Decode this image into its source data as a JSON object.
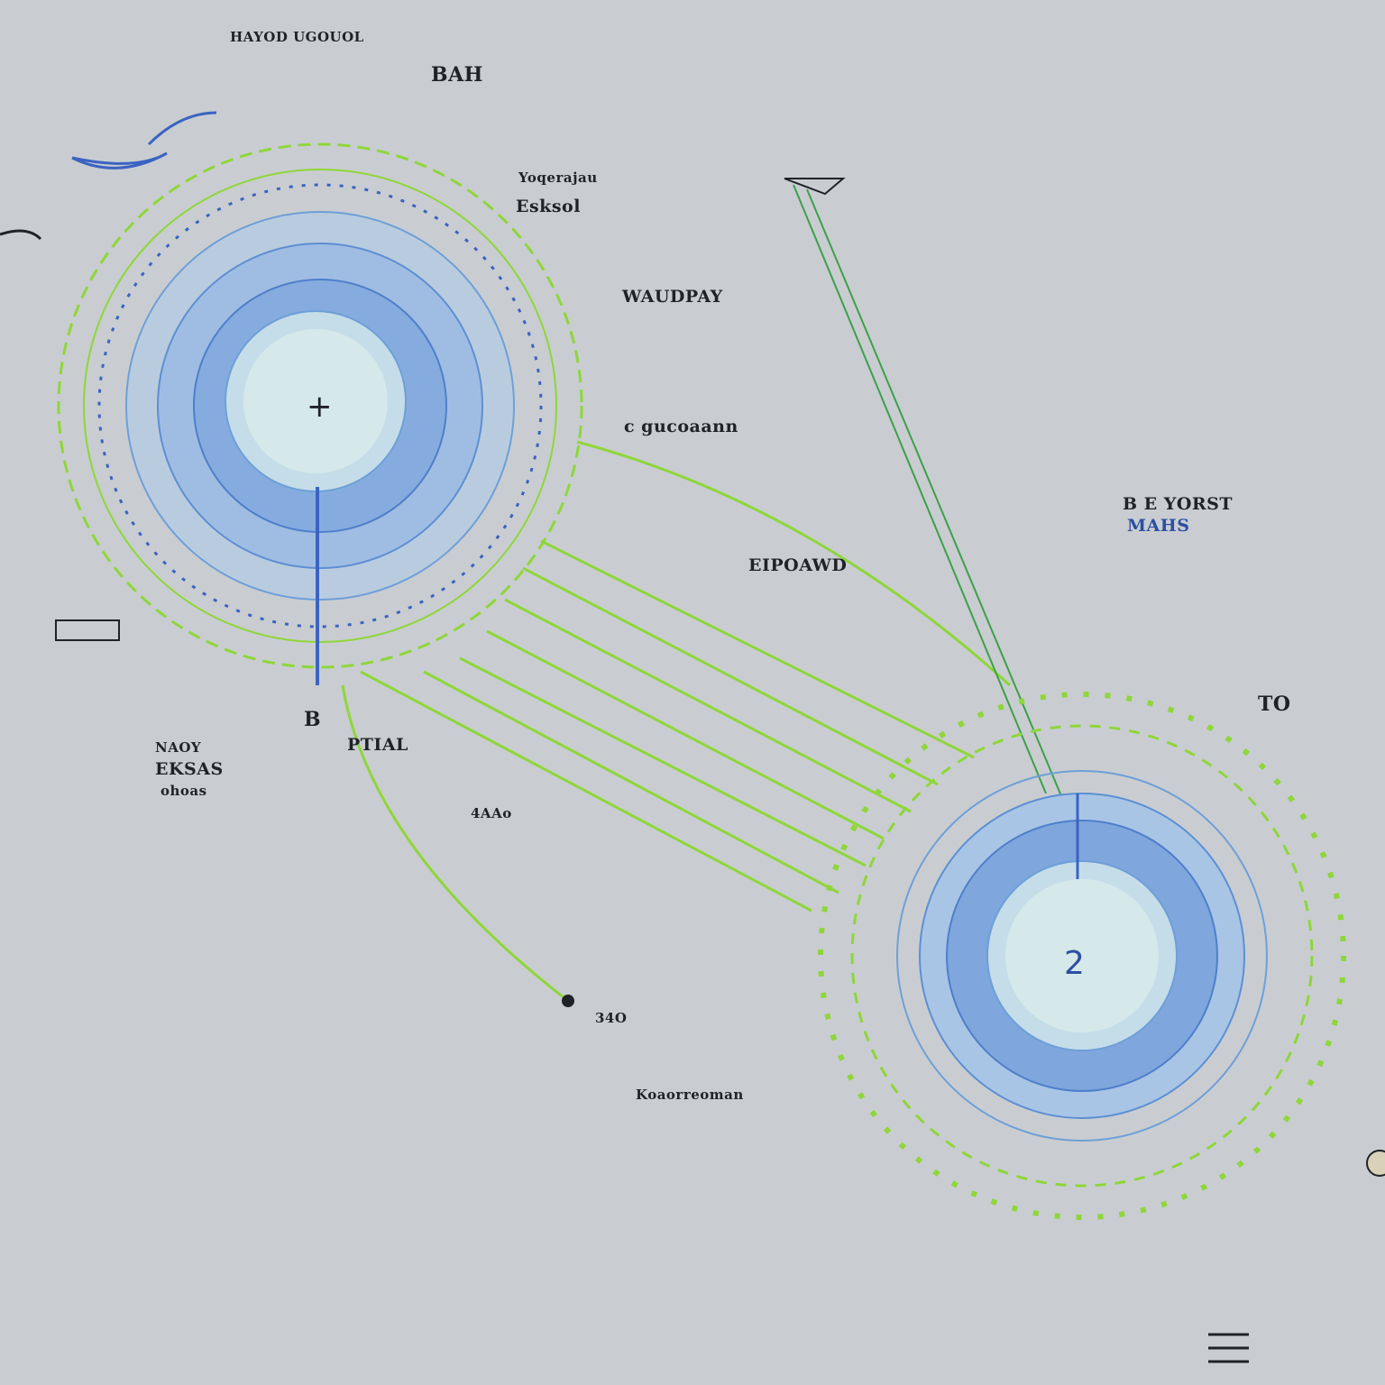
{
  "colors": {
    "paper": "#c9cdd1",
    "blue_dark": "#3b63c2",
    "blue_mid": "#6e9fd8",
    "blue_light": "#a8c8ea",
    "core": "#d5e9ea",
    "green": "#8fd63a",
    "green_dark": "#3aa14a",
    "ink": "#1f2226"
  },
  "labels": {
    "top_left": "HAYOD UGOUOL",
    "top_box": "BAH",
    "top_mid_1": "Yoqerajau",
    "top_mid_2": "Esksol",
    "right_1": "WAUDPAY",
    "right_2": "c gucoaann",
    "mid": "EIPOAWD",
    "far_right_1": "B E YORST",
    "far_right_2": "MAHS",
    "far_right_3": "TO",
    "left_1": "NAOY",
    "left_2": "EKSAS",
    "left_3": "ohoas",
    "b_mark": "B",
    "under_b": "PTIAL",
    "center_small": "4AAo",
    "bottom_num": "34O",
    "bottom_mid": "Koaorreoman",
    "circle1_core": "+",
    "circle2_core": "2"
  }
}
